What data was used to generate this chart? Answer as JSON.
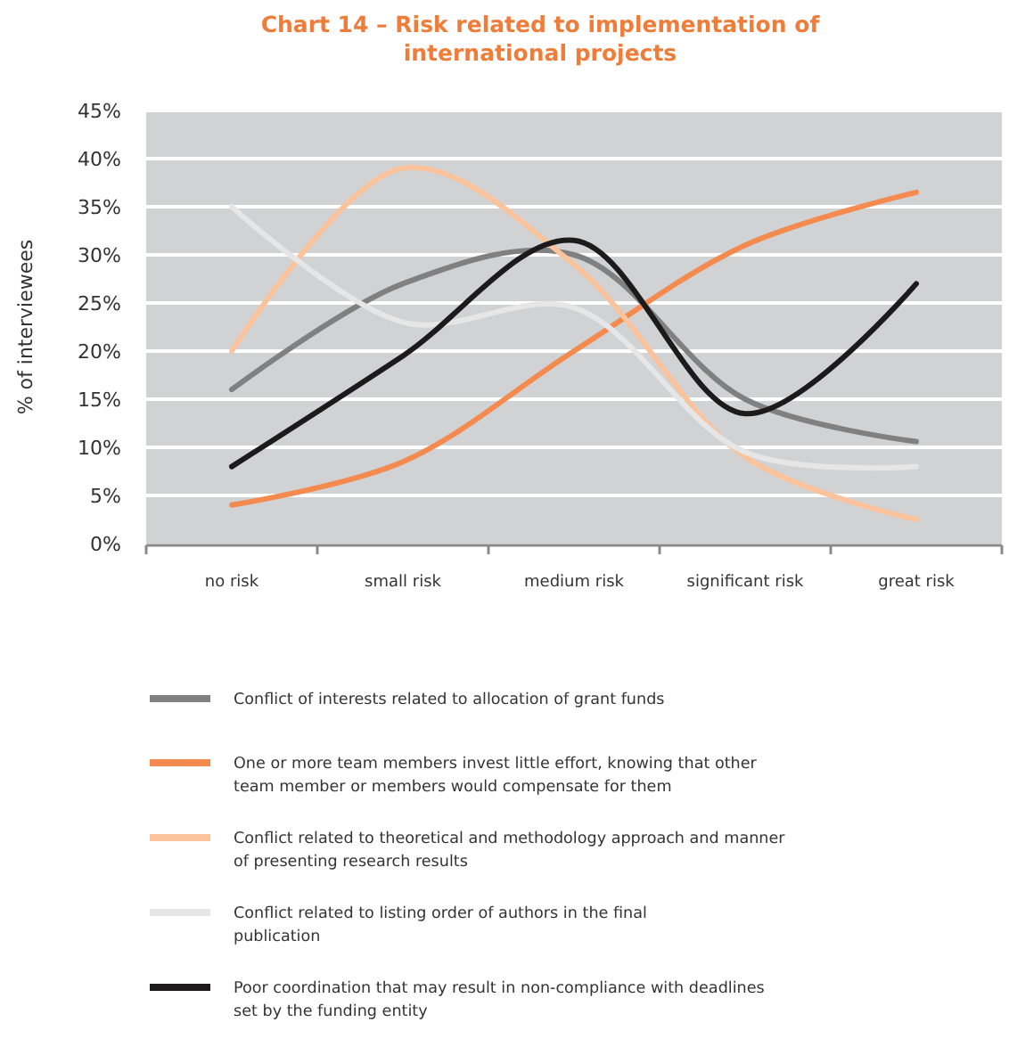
{
  "chart_data": {
    "type": "line",
    "title": "Chart 14 – Risk related to implementation of international projects",
    "ylabel": "% of interviewees",
    "categories": [
      "no risk",
      "small risk",
      "medium risk",
      "significant risk",
      "great risk"
    ],
    "series": [
      {
        "name": "Conflict of interests related to allocation of grant funds",
        "color": "#808080",
        "values": [
          16,
          27,
          30,
          15,
          10.6
        ]
      },
      {
        "name": "One or more team members invest little effort, knowing that other team member or members would compensate for them",
        "color": "#f58a4e",
        "values": [
          4,
          8.5,
          20,
          31,
          36.5
        ]
      },
      {
        "name": "Conflict related to theoretical and methodology approach and manner of presenting research results",
        "color": "#fbc39c",
        "values": [
          20,
          39,
          29,
          9,
          2.5
        ]
      },
      {
        "name": "Conflict related to listing order of authors in the final publication",
        "color": "#e6e6e6",
        "values": [
          35,
          23,
          24.5,
          9.5,
          8
        ]
      },
      {
        "name": "Poor coordination that may result in non-compliance with deadlines set by the funding entity",
        "color": "#1c1a1a",
        "values": [
          8,
          19.5,
          31.5,
          13.5,
          27
        ]
      }
    ],
    "ylim": [
      0,
      45
    ],
    "yticks": [
      {
        "value": 0,
        "label": "0%"
      },
      {
        "value": 5,
        "label": "5%"
      },
      {
        "value": 10,
        "label": "10%"
      },
      {
        "value": 15,
        "label": "15%"
      },
      {
        "value": 20,
        "label": "20%"
      },
      {
        "value": 25,
        "label": "25%"
      },
      {
        "value": 30,
        "label": "30%"
      },
      {
        "value": 35,
        "label": "35%"
      },
      {
        "value": 40,
        "label": "40%"
      },
      {
        "value": 45,
        "label": "45%"
      }
    ],
    "grid": "y",
    "legend": "bottom",
    "marker": "none",
    "line_style": "solid"
  }
}
